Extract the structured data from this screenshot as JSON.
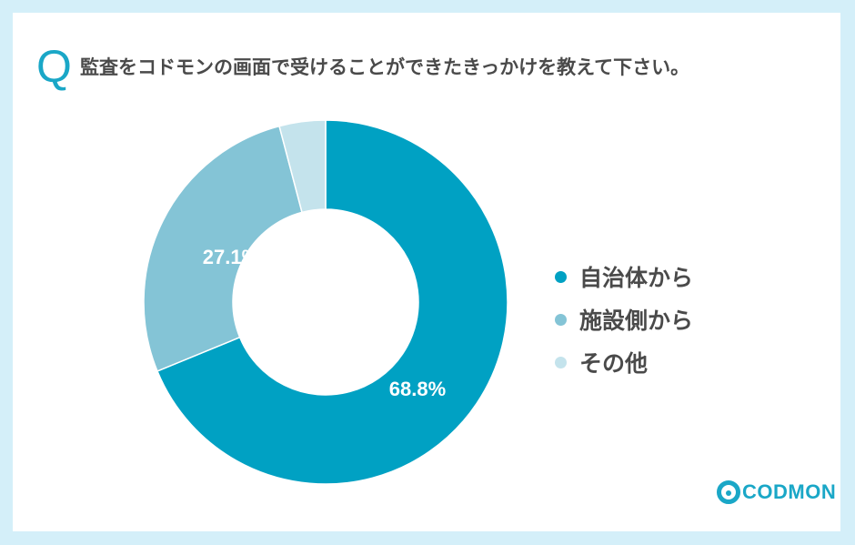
{
  "question": {
    "mark": "Q",
    "text": "監査をコドモンの画面で受けることができたきっかけを教えて下さい。"
  },
  "chart_data": {
    "type": "pie",
    "categories": [
      "自治体から",
      "施設側から",
      "その他"
    ],
    "values": [
      68.8,
      27.1,
      4.1
    ],
    "data_labels": [
      "68.8%",
      "27.1%",
      ""
    ],
    "colors": [
      "#00a1c3",
      "#84c4d6",
      "#c4e3ec"
    ],
    "donut": true,
    "legend_position": "right"
  },
  "logo": {
    "text": "CODMON"
  }
}
